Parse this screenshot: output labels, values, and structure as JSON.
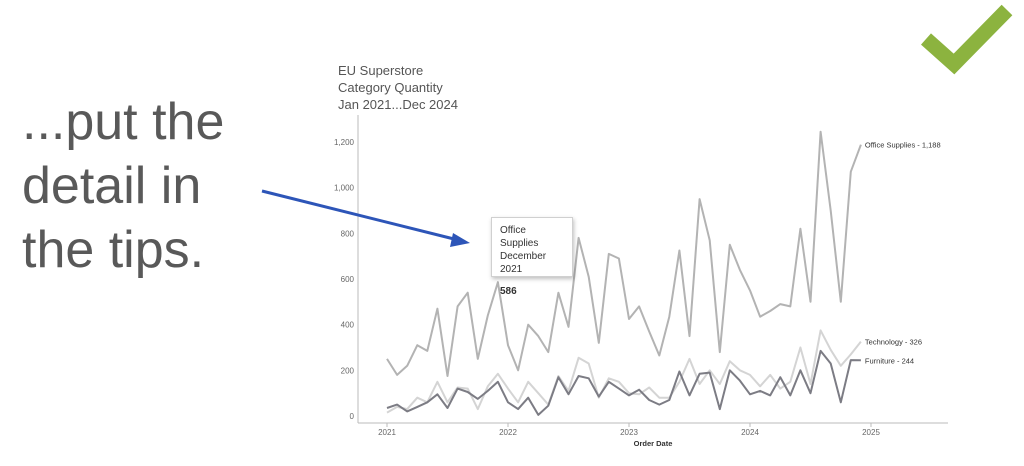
{
  "slide": {
    "caption_lines": [
      "...put the",
      "detail in",
      "the tips."
    ],
    "accent": "#8cb33f",
    "arrow_color": "#2d55b8"
  },
  "tooltip": {
    "series": "Office Supplies",
    "period": "December 2021",
    "value": "586"
  },
  "chart_data": {
    "type": "line",
    "title": [
      "EU Superstore",
      "Category Quantity",
      "Jan 2021...Dec 2024"
    ],
    "xlabel": "Order Date",
    "ylabel": "",
    "x_ticks": [
      "2021",
      "2022",
      "2023",
      "2024",
      "2025"
    ],
    "y_ticks": [
      "0",
      "200",
      "400",
      "600",
      "800",
      "1,000",
      "1,200"
    ],
    "ylim": [
      0,
      1300
    ],
    "xlim": [
      "2020-11",
      "2025-07"
    ],
    "grid": false,
    "legend": "none",
    "x": [
      "2021-01",
      "2021-02",
      "2021-03",
      "2021-04",
      "2021-05",
      "2021-06",
      "2021-07",
      "2021-08",
      "2021-09",
      "2021-10",
      "2021-11",
      "2021-12",
      "2022-01",
      "2022-02",
      "2022-03",
      "2022-04",
      "2022-05",
      "2022-06",
      "2022-07",
      "2022-08",
      "2022-09",
      "2022-10",
      "2022-11",
      "2022-12",
      "2023-01",
      "2023-02",
      "2023-03",
      "2023-04",
      "2023-05",
      "2023-06",
      "2023-07",
      "2023-08",
      "2023-09",
      "2023-10",
      "2023-11",
      "2023-12",
      "2024-01",
      "2024-02",
      "2024-03",
      "2024-04",
      "2024-05",
      "2024-06",
      "2024-07",
      "2024-08",
      "2024-09",
      "2024-10",
      "2024-11",
      "2024-12"
    ],
    "series": [
      {
        "name": "Office Supplies",
        "end_label": "Office Supplies - 1,188",
        "color": "#b3b3b3",
        "values": [
          250,
          180,
          220,
          310,
          285,
          470,
          175,
          480,
          540,
          250,
          440,
          586,
          310,
          200,
          400,
          350,
          280,
          540,
          390,
          780,
          610,
          320,
          710,
          690,
          425,
          480,
          370,
          265,
          435,
          725,
          350,
          950,
          770,
          280,
          750,
          640,
          550,
          435,
          460,
          490,
          480,
          820,
          500,
          1245,
          900,
          500,
          1070,
          1188
        ]
      },
      {
        "name": "Technology",
        "end_label": "Technology - 326",
        "color": "#d4d4d4",
        "values": [
          15,
          40,
          30,
          80,
          60,
          150,
          60,
          125,
          120,
          30,
          130,
          185,
          120,
          60,
          150,
          100,
          50,
          175,
          110,
          255,
          230,
          80,
          165,
          150,
          100,
          95,
          125,
          80,
          80,
          150,
          250,
          140,
          200,
          140,
          240,
          200,
          180,
          130,
          180,
          120,
          150,
          300,
          140,
          375,
          290,
          220,
          270,
          326
        ]
      },
      {
        "name": "Furniture",
        "end_label": "Furniture - 244",
        "color": "#7c7c84",
        "values": [
          35,
          50,
          20,
          40,
          60,
          95,
          35,
          120,
          105,
          75,
          110,
          150,
          60,
          30,
          80,
          5,
          45,
          170,
          95,
          175,
          165,
          85,
          150,
          120,
          90,
          115,
          70,
          50,
          70,
          195,
          90,
          185,
          190,
          30,
          200,
          155,
          95,
          110,
          90,
          170,
          90,
          200,
          100,
          285,
          230,
          60,
          245,
          244
        ]
      }
    ]
  }
}
